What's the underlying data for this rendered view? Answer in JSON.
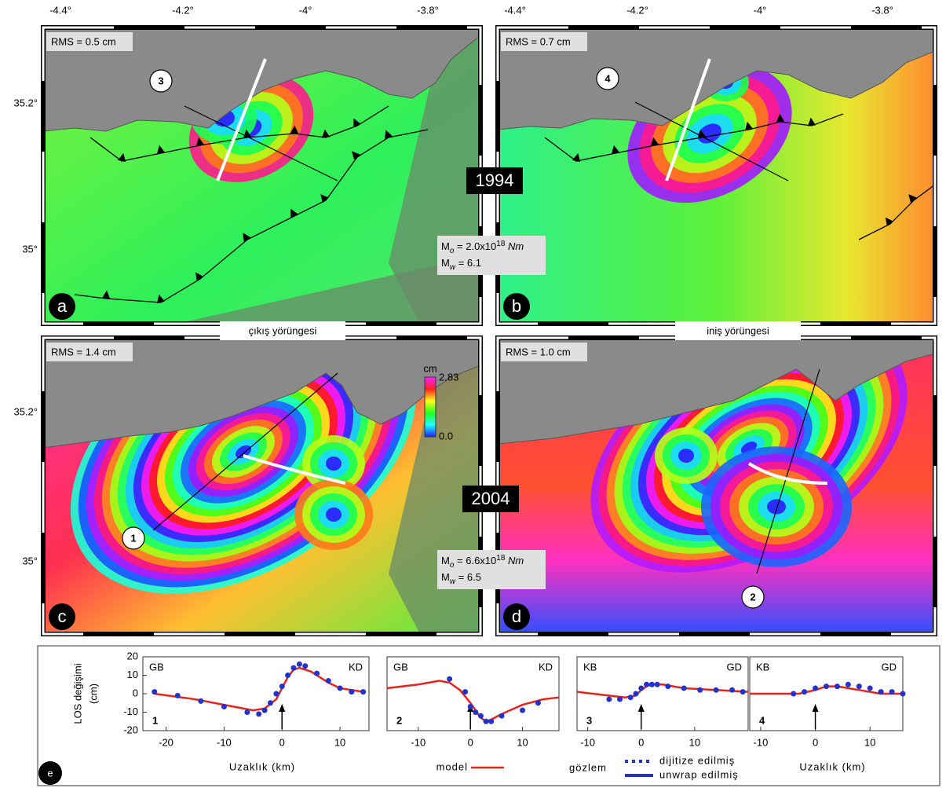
{
  "map_axes": {
    "x_labels": [
      "-4.4°",
      "-4.2°",
      "-4°",
      "-3.8°"
    ],
    "y_labels": [
      "35.2°",
      "35°"
    ]
  },
  "panels": [
    {
      "letter": "a",
      "rms": "RMS = 0.5 cm",
      "profile": "3"
    },
    {
      "letter": "b",
      "rms": "RMS = 0.7 cm",
      "profile": "4"
    },
    {
      "letter": "c",
      "rms": "RMS = 1.4 cm",
      "profile": "1"
    },
    {
      "letter": "d",
      "rms": "RMS = 1.0 cm",
      "profile": "2"
    }
  ],
  "years": [
    "1994",
    "2004"
  ],
  "orbits": [
    "çıkış yörüngesi",
    "iniş yörüngesi"
  ],
  "moment_symbol": {
    "m": "M",
    "o": "o",
    "w": "w"
  },
  "moments": [
    {
      "mo": " = 2.0x10",
      "mo_exp": "18",
      "mo_unit": " Nm",
      "mw": " = 6.1"
    },
    {
      "mo": " = 6.6x10",
      "mo_exp": "18",
      "mo_unit": " Nm",
      "mw": " = 6.5"
    }
  ],
  "colorbar": {
    "unit": "cm",
    "max": "2.83",
    "min": "0.0"
  },
  "profiles_panel": {
    "letter": "e",
    "observed_label": "gözlem"
  },
  "chart_data": [
    {
      "type": "line",
      "left_label": "GB",
      "right_label": "KD",
      "label": "1",
      "x_label": "Uzaklık (km)",
      "y_label": [
        "LOS değişimi",
        "(cm)"
      ],
      "xlim": [
        -24,
        15
      ],
      "ylim": [
        -20,
        20
      ],
      "xticks": [
        -20,
        -10,
        0,
        10
      ],
      "yticks": [
        -20,
        -10,
        0,
        10,
        20
      ],
      "series": [
        {
          "name": "model",
          "color": "#e8221c",
          "style": "line",
          "x": [
            -22,
            -15,
            -10,
            -5,
            -3,
            -1,
            0,
            1,
            2,
            3,
            5,
            8,
            10,
            14
          ],
          "values": [
            0,
            -3,
            -6,
            -9,
            -8,
            -3,
            3,
            9,
            13,
            14,
            12,
            6,
            3,
            1
          ]
        },
        {
          "name": "unwrap edilmiş",
          "color": "#2233cc",
          "style": "points",
          "x": [
            -22,
            -18,
            -14,
            -10,
            -6,
            -4,
            -3,
            -2,
            -1,
            0,
            1,
            2,
            3,
            4,
            6,
            8,
            10,
            12,
            14
          ],
          "values": [
            1,
            -1,
            -4,
            -7,
            -10,
            -11,
            -9,
            -5,
            0,
            4,
            10,
            14,
            16,
            15,
            11,
            7,
            3,
            1,
            1
          ]
        }
      ]
    },
    {
      "type": "line",
      "left_label": "GB",
      "right_label": "KD",
      "label": "2",
      "xlim": [
        -16,
        17
      ],
      "ylim": [
        -20,
        20
      ],
      "xticks": [
        -10,
        0,
        10
      ],
      "series": [
        {
          "name": "model",
          "color": "#e8221c",
          "style": "line",
          "x": [
            -16,
            -10,
            -6,
            -4,
            -2,
            0,
            1,
            2,
            3,
            4,
            6,
            10,
            14,
            17
          ],
          "values": [
            3,
            5,
            7,
            6,
            2,
            -5,
            -9,
            -13,
            -15,
            -14,
            -11,
            -6,
            -3,
            -2
          ]
        },
        {
          "name": "dijitize edilmiş",
          "color": "#2233cc",
          "style": "points",
          "x": [
            -4,
            -1,
            0,
            1,
            2,
            3,
            4,
            6,
            10,
            13
          ],
          "values": [
            8,
            1,
            -7,
            -10,
            -12,
            -15,
            -15,
            -12,
            -9,
            -5
          ]
        }
      ]
    },
    {
      "type": "line",
      "left_label": "KB",
      "right_label": "GD",
      "label": "3",
      "xlim": [
        -12,
        20
      ],
      "ylim": [
        -20,
        20
      ],
      "xticks": [
        -10,
        0,
        10
      ],
      "series": [
        {
          "name": "model",
          "color": "#e8221c",
          "style": "line",
          "x": [
            -12,
            -6,
            -3,
            -1,
            0,
            1,
            2,
            4,
            8,
            14,
            20
          ],
          "values": [
            1,
            -1,
            -2,
            -1,
            2,
            4,
            5,
            5,
            3,
            2,
            1
          ]
        },
        {
          "name": "unwrap edilmiş",
          "color": "#2233cc",
          "style": "points",
          "x": [
            -6,
            -4,
            -2,
            -1,
            0,
            1,
            2,
            3,
            5,
            8,
            11,
            14,
            17,
            19
          ],
          "values": [
            -3,
            -3,
            -2,
            0,
            3,
            5,
            5,
            5,
            4,
            3,
            2,
            2,
            2,
            1
          ]
        }
      ]
    },
    {
      "type": "line",
      "left_label": "KB",
      "right_label": "GD",
      "label": "4",
      "x_label": "Uzaklık (km)",
      "xlim": [
        -12,
        16
      ],
      "ylim": [
        -20,
        20
      ],
      "xticks": [
        -10,
        0,
        10
      ],
      "series": [
        {
          "name": "model",
          "color": "#e8221c",
          "style": "line",
          "x": [
            -12,
            -6,
            -3,
            0,
            2,
            4,
            8,
            12,
            16
          ],
          "values": [
            0,
            0,
            0,
            2,
            4,
            4,
            2,
            0,
            0
          ]
        },
        {
          "name": "unwrap edilmiş",
          "color": "#2233cc",
          "style": "points",
          "x": [
            -4,
            -2,
            0,
            2,
            4,
            6,
            8,
            10,
            12,
            14,
            16
          ],
          "values": [
            0,
            1,
            3,
            4,
            4,
            5,
            4,
            3,
            1,
            1,
            0
          ]
        }
      ]
    }
  ]
}
